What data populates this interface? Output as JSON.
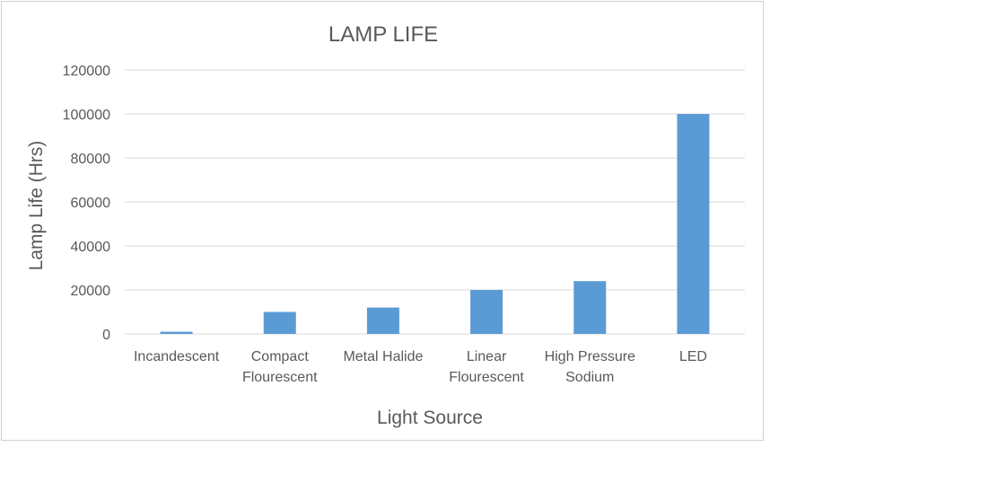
{
  "chart_data": {
    "type": "bar",
    "title": "LAMP LIFE",
    "xlabel": "Light Source",
    "ylabel": "Lamp Life (Hrs)",
    "ylim": [
      0,
      120000
    ],
    "yticks": [
      0,
      20000,
      40000,
      60000,
      80000,
      100000,
      120000
    ],
    "grid": true,
    "legend": "none",
    "bar_color": "#5b9bd5",
    "categories": [
      [
        "Incandescent"
      ],
      [
        "Compact",
        "Flourescent"
      ],
      [
        "Metal Halide"
      ],
      [
        "Linear",
        "Flourescent"
      ],
      [
        "High Pressure",
        "Sodium"
      ],
      [
        "LED"
      ]
    ],
    "values": [
      1000,
      10000,
      12000,
      20000,
      24000,
      100000
    ]
  }
}
